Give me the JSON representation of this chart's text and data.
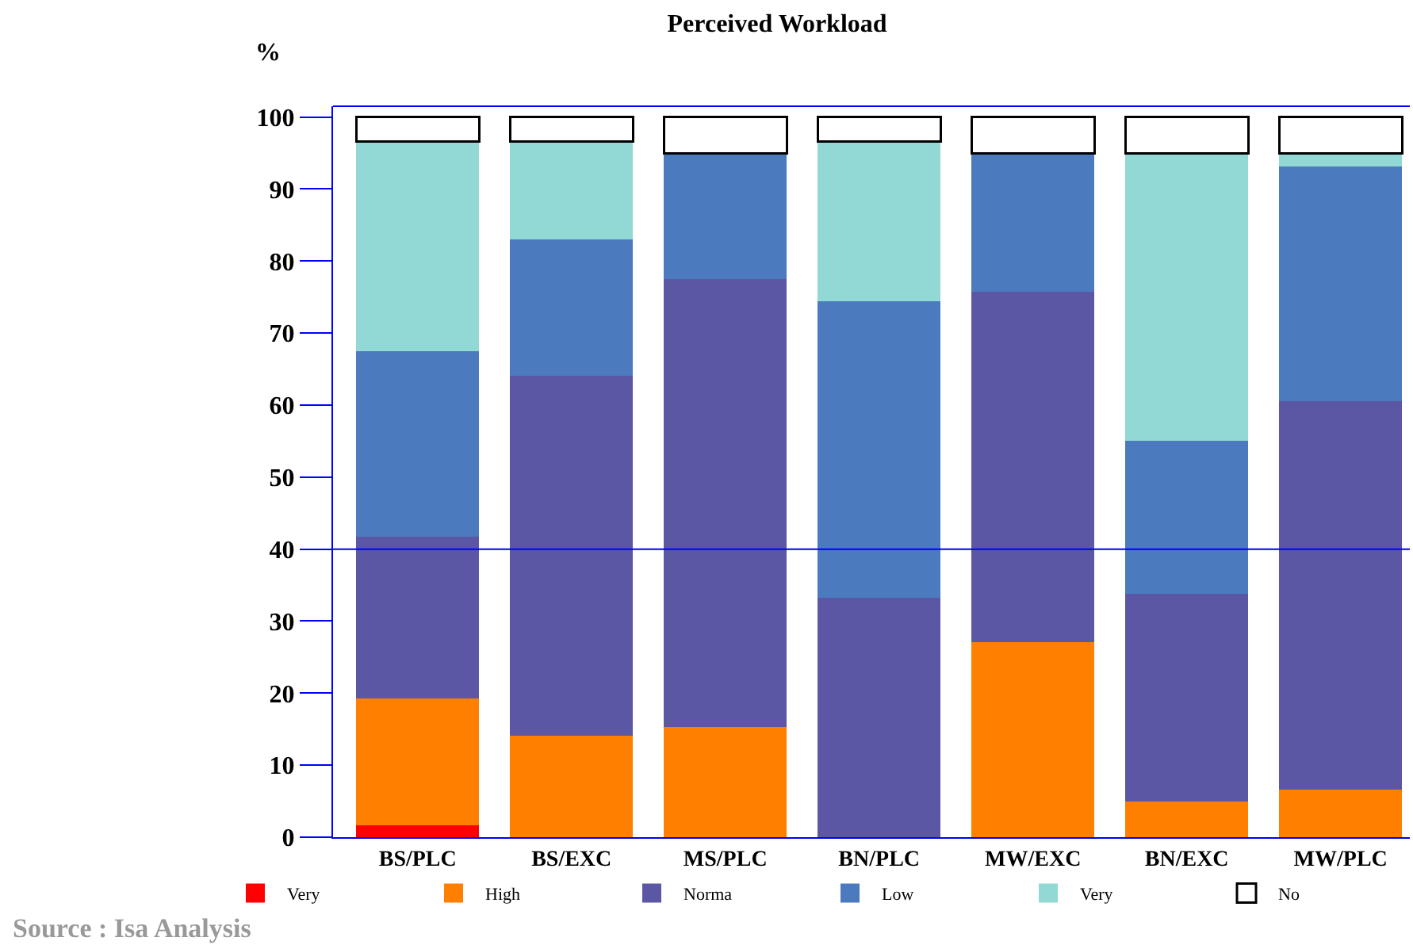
{
  "chart_data": {
    "type": "bar",
    "stacked": true,
    "title": "Perceived Workload",
    "ylabel": "%",
    "categories": [
      "BS/PLC",
      "BS/EXC",
      "MS/PLC",
      "BN/PLC",
      "MW/EXC",
      "BN/EXC",
      "MW/PLC"
    ],
    "series": [
      {
        "name": "Very",
        "color": "#ff0000",
        "values": [
          1.6,
          0,
          0,
          0,
          0,
          0,
          0
        ]
      },
      {
        "name": "High",
        "color": "#ff7f00",
        "values": [
          17.7,
          14.1,
          15.3,
          0,
          27.1,
          5.0,
          6.6
        ]
      },
      {
        "name": "Norma",
        "color": "#5b57a5",
        "values": [
          22.4,
          50.0,
          62.2,
          33.3,
          48.6,
          28.8,
          54.0
        ]
      },
      {
        "name": "Low",
        "color": "#4b7bbe",
        "values": [
          25.8,
          18.9,
          17.4,
          41.1,
          19.2,
          21.2,
          32.5
        ]
      },
      {
        "name": "Very",
        "color": "#92d8d5",
        "values": [
          29.1,
          13.6,
          0,
          22.2,
          0,
          39.9,
          1.8
        ]
      },
      {
        "name": "No",
        "color": "#ffffff",
        "values": [
          3.4,
          3.4,
          5.1,
          3.4,
          5.1,
          5.1,
          5.1
        ]
      }
    ],
    "ylim": [
      0,
      101.5
    ],
    "yticks": [
      0,
      10,
      20,
      30,
      40,
      50,
      60,
      70,
      80,
      90,
      100
    ],
    "grid": false,
    "legend": "bottom",
    "ref_lines": [
      {
        "axis": "y",
        "value": 40,
        "color": "#0000ff"
      }
    ],
    "annotations": [
      "Source : Isa Analysis"
    ]
  }
}
